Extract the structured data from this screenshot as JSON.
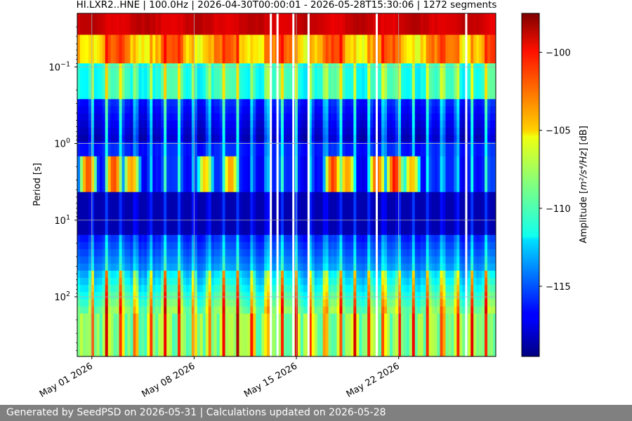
{
  "chart_data": {
    "type": "heatmap",
    "title": "HI.LXR2..HNE | 100.0Hz | 2026-04-30T00:00:01 - 2026-05-28T15:30:06 | 1272 segments",
    "ylabel": "Period [s]",
    "xlabel": "",
    "y_scale": "log",
    "y_inverted": true,
    "ylim": [
      0.02,
      600
    ],
    "xlim": [
      "2026-04-30",
      "2026-05-28T15:30:06"
    ],
    "x_ticks": [
      {
        "value": "2026-05-01",
        "label": "May 01 2026"
      },
      {
        "value": "2026-05-08",
        "label": "May 08 2026"
      },
      {
        "value": "2026-05-15",
        "label": "May 15 2026"
      },
      {
        "value": "2026-05-22",
        "label": "May 22 2026"
      }
    ],
    "y_ticks": [
      {
        "value": 0.1,
        "base": "10",
        "exp": "−1"
      },
      {
        "value": 1,
        "base": "10",
        "exp": "0"
      },
      {
        "value": 10,
        "base": "10",
        "exp": "1"
      },
      {
        "value": 100,
        "base": "10",
        "exp": "2"
      }
    ],
    "grid": true,
    "colormap": "jet",
    "colorbar": {
      "label_prefix": "Amplitude [",
      "label_unit": "m²/s⁴/Hz",
      "label_suffix": "] [dB]",
      "range": [
        -119.5,
        -97.5
      ],
      "ticks": [
        {
          "value": -100,
          "label": "−100"
        },
        {
          "value": -105,
          "label": "−105"
        },
        {
          "value": -110,
          "label": "−110"
        },
        {
          "value": -115,
          "label": "−115"
        }
      ]
    },
    "data_gaps": [
      "2026-05-13T06:00",
      "2026-05-13T17:00",
      "2026-05-14T19:00",
      "2026-05-15T20:00",
      "2026-05-20T12:00",
      "2026-05-26T15:00"
    ],
    "daily_cycle_peaks": [
      "2026-05-01",
      "2026-05-02",
      "2026-05-03",
      "2026-05-04",
      "2026-05-05",
      "2026-05-06",
      "2026-05-07",
      "2026-05-08",
      "2026-05-09",
      "2026-05-10",
      "2026-05-11",
      "2026-05-12",
      "2026-05-13",
      "2026-05-14",
      "2026-05-15",
      "2026-05-16",
      "2026-05-17",
      "2026-05-18",
      "2026-05-19",
      "2026-05-20",
      "2026-05-21",
      "2026-05-22",
      "2026-05-23",
      "2026-05-24",
      "2026-05-25",
      "2026-05-26",
      "2026-05-27",
      "2026-05-28"
    ],
    "microseism_band_period_s": [
      1.5,
      4
    ],
    "microseism_storms": [
      {
        "center": "2026-04-30T18:00",
        "amplitude_db": -101
      },
      {
        "center": "2026-05-02T12:00",
        "amplitude_db": -102
      },
      {
        "center": "2026-05-03T18:00",
        "amplitude_db": -103
      },
      {
        "center": "2026-05-08T18:00",
        "amplitude_db": -104
      },
      {
        "center": "2026-05-10T12:00",
        "amplitude_db": -104
      },
      {
        "center": "2026-05-17T12:00",
        "amplitude_db": -102
      },
      {
        "center": "2026-05-18T12:00",
        "amplitude_db": -103
      },
      {
        "center": "2026-05-20T12:00",
        "amplitude_db": -102
      },
      {
        "center": "2026-05-21T18:00",
        "amplitude_db": -101
      },
      {
        "center": "2026-05-22T22:00",
        "amplitude_db": -103
      }
    ]
  },
  "footer": {
    "text": "Generated by SeedPSD on 2026-05-31 | Calculations updated on 2026-05-28"
  }
}
